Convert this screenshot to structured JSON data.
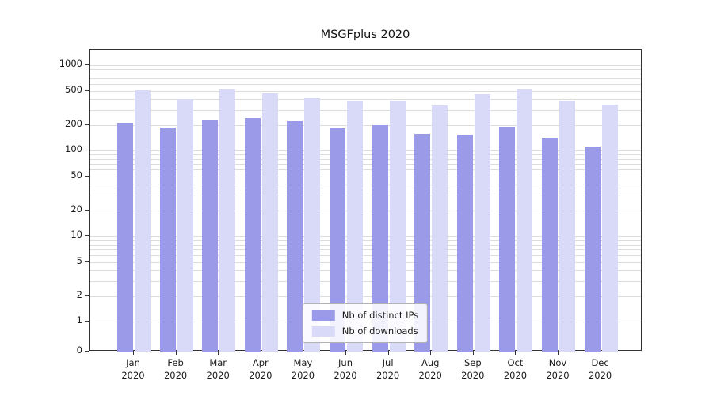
{
  "figure": {
    "background": "#ffffff"
  },
  "chart_data": {
    "type": "bar",
    "title": "MSGFplus 2020",
    "categories": [
      "Jan",
      "Feb",
      "Mar",
      "Apr",
      "May",
      "Jun",
      "Jul",
      "Aug",
      "Sep",
      "Oct",
      "Nov",
      "Dec"
    ],
    "x_tick_year": "2020",
    "series": [
      {
        "name": "Nb of distinct IPs",
        "color": "#9a9ae8",
        "values": [
          210,
          185,
          225,
          240,
          220,
          180,
          200,
          157,
          153,
          190,
          140,
          112
        ]
      },
      {
        "name": "Nb of downloads",
        "color": "#d9d9f8",
        "values": [
          505,
          400,
          515,
          465,
          410,
          375,
          385,
          337,
          455,
          515,
          385,
          344
        ]
      }
    ],
    "yscale": "symlog",
    "y_ticks": [
      0,
      1,
      2,
      5,
      10,
      20,
      50,
      100,
      200,
      500,
      1000
    ],
    "ylim": [
      0,
      1500
    ],
    "grid": true,
    "legend_position": "lower center"
  },
  "colors": {
    "bar_distinct_ips": "#9a9ae8",
    "bar_downloads": "#d9d9f8",
    "grid": "#dcdcdc",
    "axis": "#333333",
    "text": "#1a1a1a",
    "legend_border": "#b3b3b3"
  }
}
